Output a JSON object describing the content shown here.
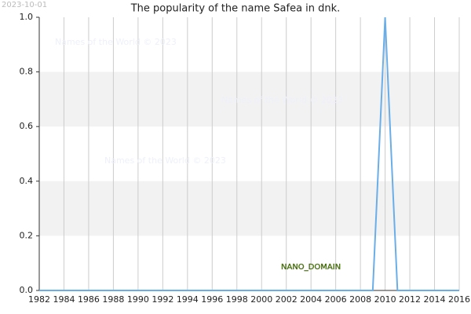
{
  "chart_data": {
    "type": "line",
    "title": "The popularity of the name Safea in dnk.",
    "date": "2023-10-01",
    "watermarks": [
      "Names of the World © 2023",
      "Names of the World © 2023",
      "Names of the World © 2023"
    ],
    "annotation": "NANO_DOMAIN",
    "x": [
      1982,
      1983,
      1984,
      1985,
      1986,
      1987,
      1988,
      1989,
      1990,
      1991,
      1992,
      1993,
      1994,
      1995,
      1996,
      1997,
      1998,
      1999,
      2000,
      2001,
      2002,
      2003,
      2004,
      2005,
      2006,
      2007,
      2008,
      2009,
      2010,
      2011,
      2012,
      2013,
      2014,
      2015,
      2016
    ],
    "series": [
      {
        "name": "Safea",
        "color": "#6aaee8",
        "values": [
          0,
          0,
          0,
          0,
          0,
          0,
          0,
          0,
          0,
          0,
          0,
          0,
          0,
          0,
          0,
          0,
          0,
          0,
          0,
          0,
          0,
          0,
          0,
          0,
          0,
          0,
          0,
          0,
          1,
          0,
          0,
          0,
          0,
          0,
          0
        ]
      }
    ],
    "xlim": [
      1982,
      2016
    ],
    "xticks": [
      1982,
      1984,
      1986,
      1988,
      1990,
      1992,
      1994,
      1996,
      1998,
      2000,
      2002,
      2004,
      2006,
      2008,
      2010,
      2012,
      2014,
      2016
    ],
    "ylim": [
      0,
      1
    ],
    "yticks": [
      {
        "value": 0,
        "label": "0.0"
      },
      0.2,
      0.4,
      0.6,
      0.8,
      {
        "value": 1,
        "label": "1.0"
      }
    ],
    "grid": true,
    "band_color": "#f2f2f2"
  }
}
